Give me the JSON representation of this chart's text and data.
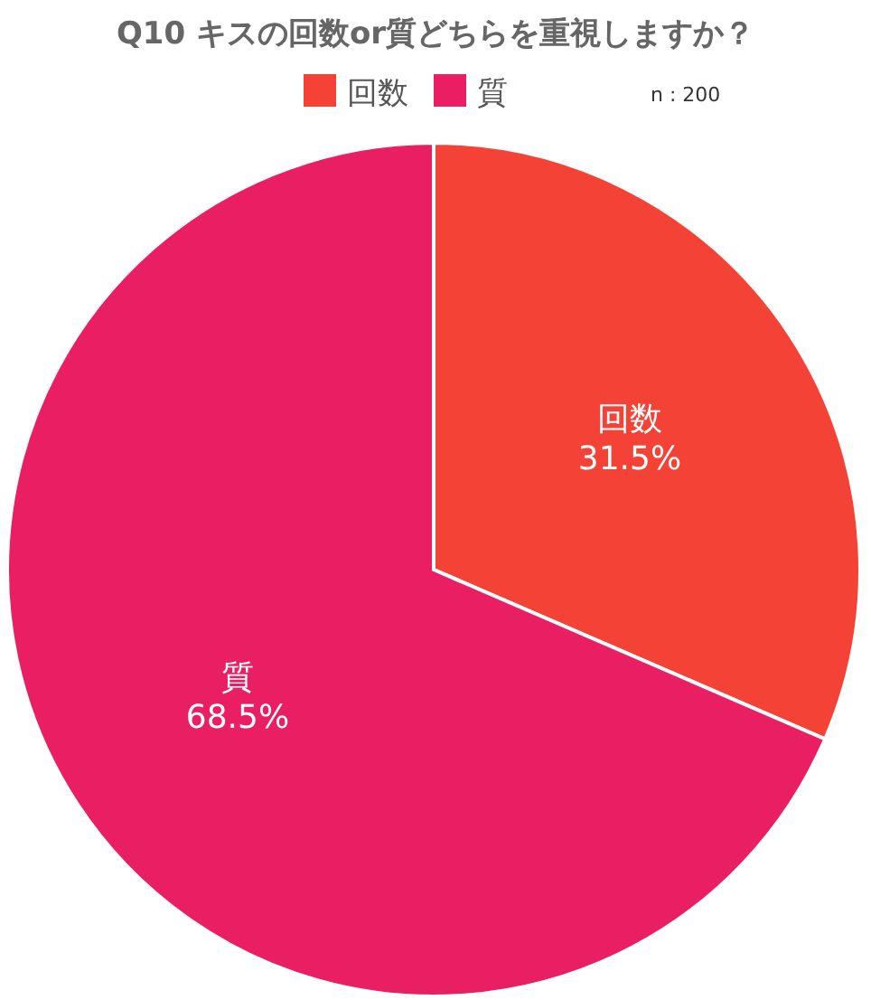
{
  "chart_data": {
    "type": "pie",
    "title": "Q10 キスの回数or質どちらを重視しますか？",
    "categories": [
      "回数",
      "質"
    ],
    "values": [
      31.5,
      68.5
    ],
    "value_labels": [
      "31.5%",
      "68.5%"
    ],
    "colors": [
      "#f44336",
      "#e91e63"
    ],
    "legend": "top",
    "annotations": [
      "n : 200"
    ]
  }
}
